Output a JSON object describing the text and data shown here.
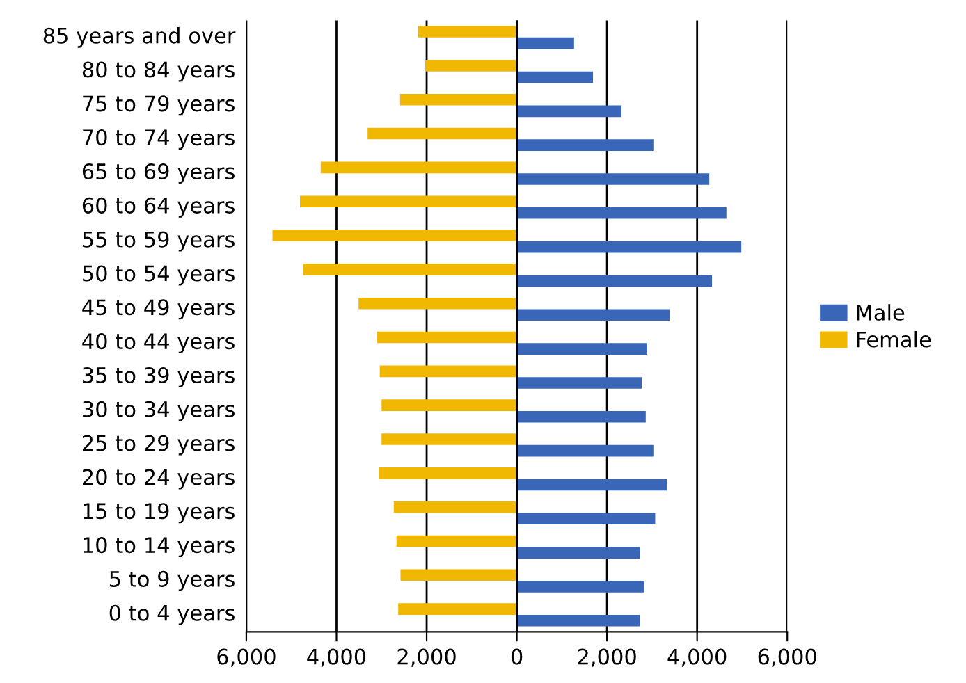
{
  "chart_data": {
    "type": "bar",
    "orientation": "horizontal",
    "categories": [
      "85 years and over",
      "80 to 84 years",
      "75 to 79 years",
      "70 to 74 years",
      "65 to 69 years",
      "60 to 64 years",
      "55 to 59 years",
      "50 to 54 years",
      "45 to 49 years",
      "40 to 44 years",
      "35 to 39 years",
      "30 to 34 years",
      "25 to 29 years",
      "20 to 24 years",
      "15 to 19 years",
      "10 to 14 years",
      "5 to 9 years",
      "0 to 4 years"
    ],
    "series": [
      {
        "name": "Male",
        "color": "#3a66b8",
        "values": [
          1270,
          1690,
          2320,
          3030,
          4270,
          4650,
          4980,
          4330,
          3390,
          2890,
          2770,
          2860,
          3030,
          3330,
          3070,
          2730,
          2830,
          2730
        ]
      },
      {
        "name": "Female",
        "color": "#f0b800",
        "values": [
          -2190,
          -2030,
          -2590,
          -3310,
          -4350,
          -4810,
          -5420,
          -4740,
          -3510,
          -3100,
          -3040,
          -3000,
          -3000,
          -3060,
          -2730,
          -2670,
          -2580,
          -2630
        ]
      }
    ],
    "xlim": [
      -6000,
      6000
    ],
    "xticks": [
      {
        "value": -6000,
        "label": "6,000"
      },
      {
        "value": -4000,
        "label": "4,000"
      },
      {
        "value": -2000,
        "label": "2,000"
      },
      0,
      {
        "value": 2000,
        "label": "2,000"
      },
      {
        "value": 4000,
        "label": "4,000"
      },
      {
        "value": 6000,
        "label": "6,000"
      }
    ],
    "grid": "x",
    "legend": "right"
  }
}
